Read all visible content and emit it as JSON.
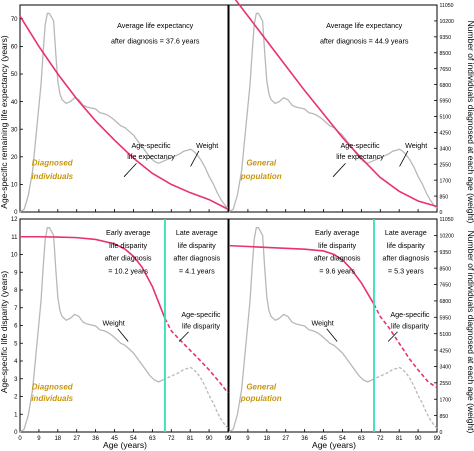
{
  "colors": {
    "expectancy": "#e8336b",
    "weight": "#b8b8b8",
    "split": "#33e0b5",
    "group_label": "#c8960c",
    "axis": "#000000"
  },
  "left_ylabel_top": "Age-specific remaining life expectancy (years)",
  "left_ylabel_bottom": "Age-specific life disparity (years)",
  "right_ylabel_top": "Number of individuals diagnosed at each age (weight)",
  "right_ylabel_bottom": "Number of individuals diagnosed at each age (weight)",
  "xlabel_left": "Age (years)",
  "xlabel_right": "Age (years)",
  "x_ticks": [
    0,
    9,
    18,
    27,
    36,
    45,
    54,
    63,
    72,
    81,
    90,
    99
  ],
  "x_tick_labels": [
    "0",
    "9",
    "18",
    "27",
    "36",
    "45",
    "54",
    "63",
    "72",
    "81",
    "90",
    "99"
  ],
  "left_y_ticks_top": [
    0,
    10,
    20,
    30,
    40,
    50,
    60,
    70
  ],
  "left_y_tick_labels_top": [
    "0",
    "10",
    "20",
    "30",
    "40",
    "50",
    "60",
    "70"
  ],
  "left_y_ticks_bottom": [
    0,
    1,
    2,
    3,
    4,
    5,
    6,
    7,
    8,
    9,
    10,
    11,
    12
  ],
  "left_y_tick_labels_bottom": [
    "0",
    "1",
    "2",
    "3",
    "4",
    "5",
    "6",
    "7",
    "8",
    "9",
    "10",
    "11",
    "12"
  ],
  "right_y_ticks": [
    0,
    850,
    1700,
    2550,
    3400,
    4250,
    5100,
    5950,
    6800,
    7650,
    8500,
    9350,
    10200,
    11050
  ],
  "right_y_tick_labels": [
    "0",
    "850",
    "1700",
    "2550",
    "3400",
    "4250",
    "5100",
    "5950",
    "6800",
    "7650",
    "8500",
    "9350",
    "10200",
    "11050"
  ],
  "weight_series": [
    [
      0,
      0
    ],
    [
      2,
      150
    ],
    [
      4,
      900
    ],
    [
      6,
      2200
    ],
    [
      8,
      4500
    ],
    [
      10,
      6800
    ],
    [
      11,
      8500
    ],
    [
      12,
      10000
    ],
    [
      13,
      10600
    ],
    [
      14,
      10600
    ],
    [
      15,
      10400
    ],
    [
      16,
      10200
    ],
    [
      17,
      8500
    ],
    [
      18,
      7000
    ],
    [
      19,
      6300
    ],
    [
      20,
      6000
    ],
    [
      22,
      5800
    ],
    [
      24,
      5900
    ],
    [
      26,
      6100
    ],
    [
      28,
      6000
    ],
    [
      30,
      5700
    ],
    [
      32,
      5600
    ],
    [
      34,
      5550
    ],
    [
      36,
      5500
    ],
    [
      38,
      5300
    ],
    [
      40,
      5250
    ],
    [
      42,
      5150
    ],
    [
      44,
      5000
    ],
    [
      46,
      4800
    ],
    [
      48,
      4600
    ],
    [
      50,
      4500
    ],
    [
      52,
      4300
    ],
    [
      54,
      4100
    ],
    [
      56,
      3800
    ],
    [
      58,
      3500
    ],
    [
      60,
      3200
    ],
    [
      62,
      2900
    ],
    [
      64,
      2700
    ],
    [
      66,
      2600
    ],
    [
      68,
      2700
    ],
    [
      70,
      2800
    ],
    [
      72,
      2900
    ],
    [
      74,
      3000
    ],
    [
      76,
      3100
    ],
    [
      78,
      3250
    ],
    [
      80,
      3300
    ],
    [
      81,
      3350
    ],
    [
      82,
      3300
    ],
    [
      84,
      3100
    ],
    [
      86,
      2800
    ],
    [
      88,
      2400
    ],
    [
      90,
      1900
    ],
    [
      92,
      1500
    ],
    [
      94,
      1000
    ],
    [
      96,
      600
    ],
    [
      98,
      300
    ],
    [
      99,
      200
    ]
  ],
  "chart_data": [
    {
      "type": "line",
      "panel": "top-left",
      "group_label": "Diagnosed individuals",
      "xlim": [
        0,
        99
      ],
      "ylim": [
        0,
        75
      ],
      "y2lim": [
        0,
        11050
      ],
      "series": [
        {
          "name": "Age-specific life expectancy",
          "x": [
            0,
            9,
            18,
            27,
            36,
            45,
            54,
            63,
            72,
            81,
            90,
            99
          ],
          "y": [
            71,
            60,
            50,
            41,
            33,
            26,
            19.5,
            14,
            10,
            7,
            4.5,
            1
          ]
        },
        {
          "name": "Weight",
          "axis": "right",
          "source": "weight_series"
        }
      ],
      "annotations": [
        {
          "text": "Average life expectancy"
        },
        {
          "text": "after diagnosis = 37.6 years"
        },
        {
          "text": "Age-specific"
        },
        {
          "text": "life expectancy"
        },
        {
          "text": "Weight"
        }
      ]
    },
    {
      "type": "line",
      "panel": "top-right",
      "group_label": "General population",
      "xlim": [
        0,
        99
      ],
      "ylim": [
        0,
        75
      ],
      "y2lim": [
        0,
        11050
      ],
      "series": [
        {
          "name": "Age-specific life expectancy",
          "x": [
            0,
            9,
            18,
            27,
            36,
            45,
            54,
            63,
            72,
            81,
            90,
            99
          ],
          "y": [
            80,
            71,
            62,
            53,
            44,
            35.5,
            27,
            19.5,
            12.5,
            7.5,
            4,
            2
          ]
        },
        {
          "name": "Weight",
          "axis": "right",
          "source": "weight_series"
        }
      ],
      "annotations": [
        {
          "text": "Average life expectancy"
        },
        {
          "text": "after diagnosis = 44.9 years"
        },
        {
          "text": "Age-specific"
        },
        {
          "text": "life expectancy"
        },
        {
          "text": "Weight"
        }
      ]
    },
    {
      "type": "line",
      "panel": "bottom-left",
      "group_label": "Diagnosed individuals",
      "split_age": 69,
      "xlim": [
        0,
        99
      ],
      "ylim": [
        0,
        12
      ],
      "y2lim": [
        0,
        11050
      ],
      "series": [
        {
          "name": "Age-specific life disparity",
          "x": [
            0,
            9,
            18,
            27,
            36,
            45,
            50,
            54,
            58,
            63,
            66,
            69,
            72,
            76,
            81,
            86,
            90,
            95,
            99
          ],
          "y": [
            11,
            11,
            10.98,
            10.95,
            10.85,
            10.6,
            10.3,
            9.9,
            9.3,
            8.2,
            7.3,
            6.4,
            5.7,
            5.2,
            4.6,
            4,
            3.5,
            2.8,
            2.2
          ]
        },
        {
          "name": "Weight",
          "axis": "right",
          "source": "weight_series"
        }
      ],
      "annotations": [
        {
          "text": "Early average"
        },
        {
          "text": "life disparity"
        },
        {
          "text": "after diagnosis"
        },
        {
          "text": "= 10.2 years"
        },
        {
          "text": "Late average"
        },
        {
          "text": "life disparity"
        },
        {
          "text": "after diagnosis"
        },
        {
          "text": "= 4.1 years"
        },
        {
          "text": "Weight"
        },
        {
          "text": "Age-specific"
        },
        {
          "text": "life disparity"
        }
      ]
    },
    {
      "type": "line",
      "panel": "bottom-right",
      "group_label": "General population",
      "split_age": 69,
      "xlim": [
        0,
        99
      ],
      "ylim": [
        0,
        12
      ],
      "y2lim": [
        0,
        11050
      ],
      "series": [
        {
          "name": "Age-specific life disparity",
          "x": [
            0,
            9,
            18,
            27,
            36,
            45,
            50,
            54,
            58,
            63,
            66,
            69,
            72,
            76,
            81,
            86,
            90,
            95,
            99
          ],
          "y": [
            10.5,
            10.45,
            10.4,
            10.35,
            10.3,
            10.2,
            10,
            9.7,
            9.2,
            8.4,
            7.8,
            7.2,
            6.5,
            5.9,
            5,
            4.1,
            3.5,
            2.8,
            2.5
          ]
        },
        {
          "name": "Weight",
          "axis": "right",
          "source": "weight_series"
        }
      ],
      "annotations": [
        {
          "text": "Early average"
        },
        {
          "text": "life disparity"
        },
        {
          "text": "after diagnosis"
        },
        {
          "text": "= 9.6 years"
        },
        {
          "text": "Late average"
        },
        {
          "text": "life disparity"
        },
        {
          "text": "after diagnosis"
        },
        {
          "text": "= 5.3 years"
        },
        {
          "text": "Weight"
        },
        {
          "text": "Age-specific"
        },
        {
          "text": "life disparity"
        }
      ]
    }
  ]
}
